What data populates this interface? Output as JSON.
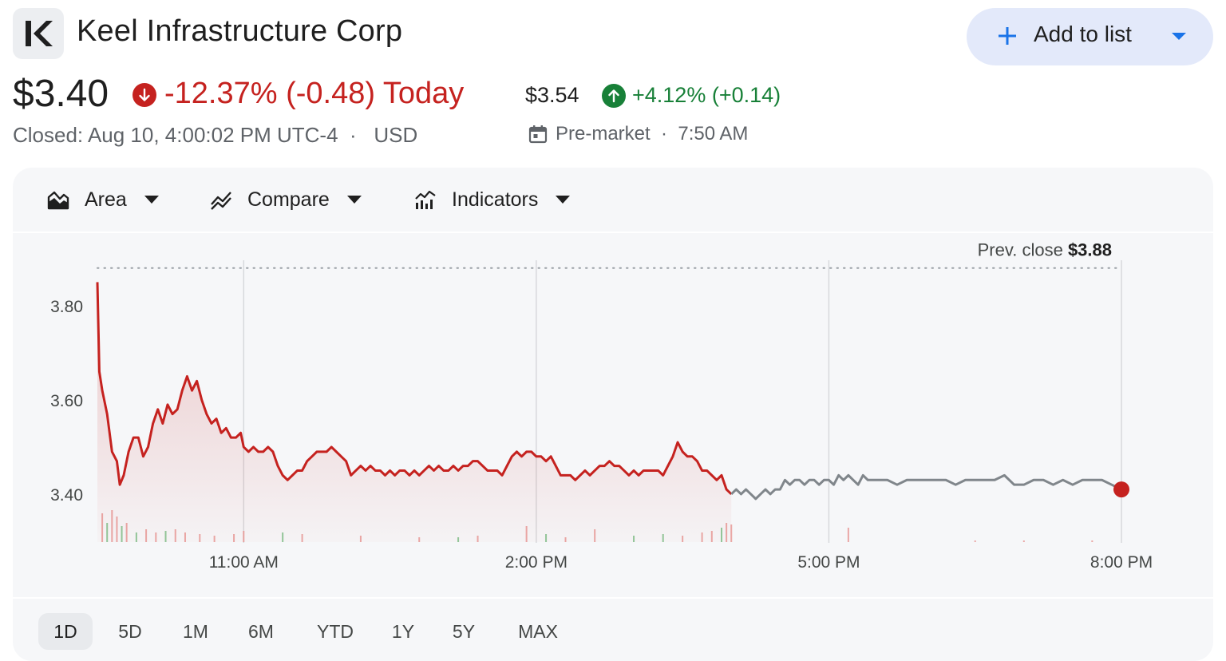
{
  "company": {
    "name": "Keel Infrastructure Corp"
  },
  "add_button": {
    "label": "Add to list"
  },
  "quote": {
    "price": "$3.40",
    "change_today": "-12.37% (-0.48) Today",
    "closed_text": "Closed: Aug 10, 4:00:02 PM UTC-4  ·   USD"
  },
  "premarket": {
    "price": "$3.54",
    "change": "+4.12% (+0.14)",
    "label": "Pre-market  ·  7:50 AM"
  },
  "toolbar": {
    "area": "Area",
    "compare": "Compare",
    "indicators": "Indicators"
  },
  "ranges": [
    "1D",
    "5D",
    "1M",
    "6M",
    "YTD",
    "1Y",
    "5Y",
    "MAX"
  ],
  "active_range": "1D",
  "colors": {
    "down": "#c5221f",
    "up": "#188038",
    "after_hours": "#80868b",
    "accent": "#1a73e8"
  },
  "chart_data": {
    "type": "area",
    "prev_close_label": "Prev. close",
    "prev_close_value": "$3.88",
    "prev_close": 3.88,
    "ylim": [
      3.3,
      3.91
    ],
    "y_ticks": [
      {
        "value": 3.8,
        "label": "3.80"
      },
      {
        "value": 3.6,
        "label": "3.60"
      },
      {
        "value": 3.4,
        "label": "3.40"
      }
    ],
    "x_ticks": [
      {
        "time": "11:00 AM",
        "hour": 11.0
      },
      {
        "time": "2:00 PM",
        "hour": 14.0
      },
      {
        "time": "5:00 PM",
        "hour": 17.0
      },
      {
        "time": "8:00 PM",
        "hour": 20.0
      }
    ],
    "x_range_hours": [
      9.5,
      20.0
    ],
    "regular_session_end_hour": 16.0,
    "series": [
      {
        "session": "regular",
        "points": [
          [
            9.5,
            3.85
          ],
          [
            9.52,
            3.66
          ],
          [
            9.55,
            3.62
          ],
          [
            9.6,
            3.57
          ],
          [
            9.65,
            3.49
          ],
          [
            9.7,
            3.47
          ],
          [
            9.73,
            3.42
          ],
          [
            9.77,
            3.44
          ],
          [
            9.82,
            3.49
          ],
          [
            9.87,
            3.52
          ],
          [
            9.92,
            3.52
          ],
          [
            9.97,
            3.48
          ],
          [
            10.02,
            3.5
          ],
          [
            10.07,
            3.55
          ],
          [
            10.12,
            3.58
          ],
          [
            10.17,
            3.55
          ],
          [
            10.22,
            3.59
          ],
          [
            10.27,
            3.57
          ],
          [
            10.32,
            3.58
          ],
          [
            10.37,
            3.62
          ],
          [
            10.42,
            3.65
          ],
          [
            10.47,
            3.62
          ],
          [
            10.52,
            3.64
          ],
          [
            10.57,
            3.6
          ],
          [
            10.62,
            3.57
          ],
          [
            10.67,
            3.55
          ],
          [
            10.72,
            3.56
          ],
          [
            10.77,
            3.53
          ],
          [
            10.82,
            3.54
          ],
          [
            10.87,
            3.52
          ],
          [
            10.92,
            3.52
          ],
          [
            10.97,
            3.53
          ],
          [
            11.0,
            3.5
          ],
          [
            11.05,
            3.49
          ],
          [
            11.1,
            3.5
          ],
          [
            11.15,
            3.49
          ],
          [
            11.2,
            3.49
          ],
          [
            11.25,
            3.5
          ],
          [
            11.3,
            3.49
          ],
          [
            11.35,
            3.46
          ],
          [
            11.4,
            3.44
          ],
          [
            11.45,
            3.43
          ],
          [
            11.5,
            3.44
          ],
          [
            11.55,
            3.45
          ],
          [
            11.6,
            3.45
          ],
          [
            11.65,
            3.47
          ],
          [
            11.7,
            3.48
          ],
          [
            11.75,
            3.49
          ],
          [
            11.8,
            3.49
          ],
          [
            11.85,
            3.49
          ],
          [
            11.9,
            3.5
          ],
          [
            11.95,
            3.49
          ],
          [
            12.0,
            3.48
          ],
          [
            12.05,
            3.47
          ],
          [
            12.1,
            3.44
          ],
          [
            12.15,
            3.45
          ],
          [
            12.2,
            3.46
          ],
          [
            12.25,
            3.45
          ],
          [
            12.3,
            3.46
          ],
          [
            12.35,
            3.45
          ],
          [
            12.4,
            3.45
          ],
          [
            12.45,
            3.44
          ],
          [
            12.5,
            3.45
          ],
          [
            12.55,
            3.44
          ],
          [
            12.6,
            3.45
          ],
          [
            12.65,
            3.45
          ],
          [
            12.7,
            3.44
          ],
          [
            12.75,
            3.45
          ],
          [
            12.8,
            3.44
          ],
          [
            12.85,
            3.45
          ],
          [
            12.9,
            3.46
          ],
          [
            12.95,
            3.45
          ],
          [
            13.0,
            3.46
          ],
          [
            13.05,
            3.45
          ],
          [
            13.1,
            3.45
          ],
          [
            13.15,
            3.46
          ],
          [
            13.2,
            3.45
          ],
          [
            13.25,
            3.46
          ],
          [
            13.3,
            3.46
          ],
          [
            13.35,
            3.47
          ],
          [
            13.4,
            3.47
          ],
          [
            13.45,
            3.46
          ],
          [
            13.5,
            3.45
          ],
          [
            13.55,
            3.45
          ],
          [
            13.6,
            3.45
          ],
          [
            13.65,
            3.44
          ],
          [
            13.7,
            3.46
          ],
          [
            13.75,
            3.48
          ],
          [
            13.8,
            3.49
          ],
          [
            13.85,
            3.48
          ],
          [
            13.9,
            3.49
          ],
          [
            13.95,
            3.49
          ],
          [
            14.0,
            3.48
          ],
          [
            14.05,
            3.48
          ],
          [
            14.1,
            3.47
          ],
          [
            14.15,
            3.48
          ],
          [
            14.2,
            3.46
          ],
          [
            14.25,
            3.44
          ],
          [
            14.3,
            3.44
          ],
          [
            14.35,
            3.44
          ],
          [
            14.4,
            3.43
          ],
          [
            14.45,
            3.44
          ],
          [
            14.5,
            3.45
          ],
          [
            14.55,
            3.44
          ],
          [
            14.6,
            3.45
          ],
          [
            14.65,
            3.46
          ],
          [
            14.7,
            3.46
          ],
          [
            14.75,
            3.47
          ],
          [
            14.8,
            3.46
          ],
          [
            14.85,
            3.46
          ],
          [
            14.9,
            3.45
          ],
          [
            14.95,
            3.44
          ],
          [
            15.0,
            3.45
          ],
          [
            15.05,
            3.44
          ],
          [
            15.1,
            3.45
          ],
          [
            15.15,
            3.45
          ],
          [
            15.2,
            3.45
          ],
          [
            15.25,
            3.45
          ],
          [
            15.3,
            3.44
          ],
          [
            15.35,
            3.46
          ],
          [
            15.4,
            3.48
          ],
          [
            15.45,
            3.51
          ],
          [
            15.5,
            3.49
          ],
          [
            15.55,
            3.48
          ],
          [
            15.6,
            3.48
          ],
          [
            15.65,
            3.47
          ],
          [
            15.7,
            3.45
          ],
          [
            15.75,
            3.45
          ],
          [
            15.8,
            3.44
          ],
          [
            15.85,
            3.43
          ],
          [
            15.9,
            3.44
          ],
          [
            15.95,
            3.41
          ],
          [
            16.0,
            3.4
          ]
        ]
      },
      {
        "session": "after-hours",
        "points": [
          [
            16.0,
            3.4
          ],
          [
            16.05,
            3.41
          ],
          [
            16.1,
            3.4
          ],
          [
            16.15,
            3.41
          ],
          [
            16.2,
            3.4
          ],
          [
            16.25,
            3.39
          ],
          [
            16.3,
            3.4
          ],
          [
            16.35,
            3.41
          ],
          [
            16.4,
            3.4
          ],
          [
            16.45,
            3.41
          ],
          [
            16.5,
            3.41
          ],
          [
            16.55,
            3.43
          ],
          [
            16.6,
            3.42
          ],
          [
            16.65,
            3.43
          ],
          [
            16.7,
            3.43
          ],
          [
            16.75,
            3.42
          ],
          [
            16.8,
            3.43
          ],
          [
            16.85,
            3.43
          ],
          [
            16.9,
            3.42
          ],
          [
            16.95,
            3.43
          ],
          [
            17.0,
            3.43
          ],
          [
            17.05,
            3.42
          ],
          [
            17.1,
            3.44
          ],
          [
            17.15,
            3.43
          ],
          [
            17.2,
            3.44
          ],
          [
            17.25,
            3.43
          ],
          [
            17.3,
            3.42
          ],
          [
            17.35,
            3.44
          ],
          [
            17.4,
            3.43
          ],
          [
            17.45,
            3.43
          ],
          [
            17.5,
            3.43
          ],
          [
            17.6,
            3.43
          ],
          [
            17.7,
            3.42
          ],
          [
            17.8,
            3.43
          ],
          [
            17.9,
            3.43
          ],
          [
            18.0,
            3.43
          ],
          [
            18.1,
            3.43
          ],
          [
            18.2,
            3.43
          ],
          [
            18.3,
            3.42
          ],
          [
            18.4,
            3.43
          ],
          [
            18.5,
            3.43
          ],
          [
            18.6,
            3.43
          ],
          [
            18.7,
            3.43
          ],
          [
            18.8,
            3.44
          ],
          [
            18.9,
            3.42
          ],
          [
            19.0,
            3.42
          ],
          [
            19.1,
            3.43
          ],
          [
            19.2,
            3.43
          ],
          [
            19.3,
            3.42
          ],
          [
            19.4,
            3.43
          ],
          [
            19.5,
            3.42
          ],
          [
            19.6,
            3.43
          ],
          [
            19.7,
            3.43
          ],
          [
            19.8,
            3.43
          ],
          [
            19.9,
            3.42
          ],
          [
            20.0,
            3.41
          ]
        ]
      }
    ],
    "volume_spikes": [
      [
        9.55,
        0.9
      ],
      [
        9.6,
        0.6
      ],
      [
        9.65,
        1.0
      ],
      [
        9.7,
        0.8
      ],
      [
        9.75,
        0.5
      ],
      [
        9.8,
        0.6
      ],
      [
        9.9,
        0.3
      ],
      [
        10.0,
        0.4
      ],
      [
        10.1,
        0.3
      ],
      [
        10.2,
        0.35
      ],
      [
        10.3,
        0.4
      ],
      [
        10.4,
        0.3
      ],
      [
        10.55,
        0.25
      ],
      [
        10.7,
        0.2
      ],
      [
        10.9,
        0.25
      ],
      [
        11.0,
        0.35
      ],
      [
        11.4,
        0.3
      ],
      [
        11.6,
        0.25
      ],
      [
        12.2,
        0.2
      ],
      [
        12.8,
        0.15
      ],
      [
        13.2,
        0.15
      ],
      [
        13.4,
        0.2
      ],
      [
        13.9,
        0.5
      ],
      [
        14.1,
        0.25
      ],
      [
        14.3,
        0.15
      ],
      [
        14.6,
        0.4
      ],
      [
        15.0,
        0.2
      ],
      [
        15.3,
        0.25
      ],
      [
        15.5,
        0.2
      ],
      [
        15.7,
        0.3
      ],
      [
        15.8,
        0.35
      ],
      [
        15.9,
        0.45
      ],
      [
        15.95,
        0.6
      ],
      [
        16.0,
        0.55
      ],
      [
        17.2,
        0.45
      ],
      [
        18.5,
        0.05
      ],
      [
        19.0,
        0.05
      ],
      [
        19.7,
        0.05
      ]
    ]
  }
}
